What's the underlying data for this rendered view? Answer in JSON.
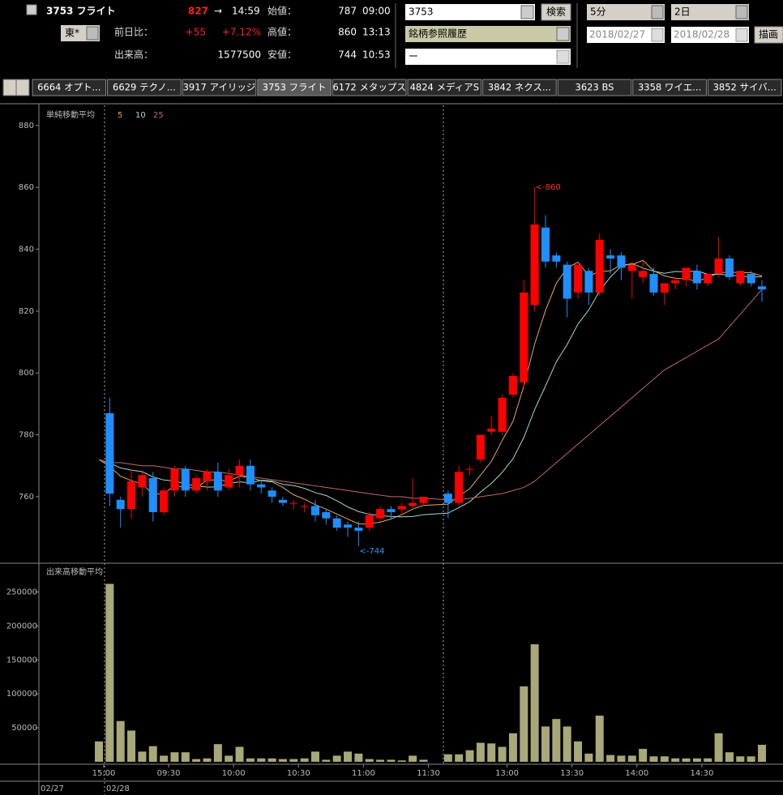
{
  "header": {
    "symbol": "3753 フライト",
    "price": "827",
    "arrow": "→",
    "time": "14:59",
    "exchange": "東*",
    "change_label": "前日比：",
    "change": "+55",
    "change_pct": "+7.12%",
    "volume_label": "出来高：",
    "volume": "1577500",
    "open_label": "始値：",
    "open": "787",
    "open_time": "09:00",
    "high_label": "高値：",
    "high": "860",
    "high_time": "13:13",
    "low_label": "安値：",
    "low": "744",
    "low_time": "10:53"
  },
  "controls": {
    "code": "3753",
    "search": "検索",
    "history": "銘柄参照履歴",
    "third": "ー",
    "interval": "5分",
    "span": "2日",
    "from": "2018/02/27",
    "to": "2018/02/28",
    "draw": "描画"
  },
  "tabs": [
    "6664 オプト...",
    "6629 テクノ...",
    "3917 アイリッジ",
    "3753 フライト",
    "6172 メタップス",
    "4824 メディアS",
    "3842 ネクス...",
    "3623 BS",
    "3358 ワイエ...",
    "3852 サイバ..."
  ],
  "dates": [
    "02/27",
    "02/28"
  ],
  "chart_data": [
    {
      "type": "candlestick",
      "title": "単純移動平均",
      "up_color": "#ff0000",
      "down_color": "#1e8fff",
      "open": [
        null,
        787,
        759,
        756,
        763,
        766,
        755,
        762,
        769,
        762,
        765,
        768,
        763,
        767,
        770,
        764,
        762,
        759,
        758,
        757,
        757,
        755,
        753,
        751,
        750,
        750,
        753,
        756,
        756,
        757,
        758,
        761,
        758,
        769,
        772,
        781,
        781,
        793,
        797,
        822,
        847,
        838,
        835,
        826,
        833,
        826,
        838,
        838,
        833,
        831,
        832,
        826,
        829,
        830,
        833,
        829,
        832,
        837,
        829,
        832,
        828
      ],
      "high": [
        null,
        792,
        760,
        769,
        768,
        768,
        763,
        770,
        770,
        767,
        769,
        771,
        769,
        772,
        772,
        765,
        763,
        760,
        759,
        758,
        759,
        756,
        754,
        752,
        752,
        755,
        757,
        757,
        758,
        766,
        760,
        762,
        770,
        770,
        780,
        786,
        793,
        800,
        830,
        860,
        851,
        839,
        836,
        835,
        834,
        845,
        840,
        839,
        836,
        836,
        834,
        829,
        831,
        834,
        835,
        832,
        844,
        838,
        833,
        833,
        830
      ],
      "low": [
        null,
        757,
        750,
        753,
        760,
        752,
        754,
        760,
        760,
        761,
        762,
        760,
        762,
        763,
        762,
        761,
        758,
        757,
        756,
        755,
        752,
        751,
        749,
        747,
        744,
        749,
        752,
        753,
        754,
        756,
        757,
        753,
        757,
        767,
        771,
        780,
        780,
        792,
        795,
        820,
        834,
        834,
        818,
        824,
        822,
        825,
        832,
        830,
        824,
        829,
        825,
        822,
        827,
        828,
        827,
        828,
        831,
        830,
        828,
        828,
        823
      ],
      "close": [
        null,
        761,
        756,
        765,
        767,
        755,
        762,
        769,
        762,
        766,
        768,
        762,
        767,
        770,
        764,
        763,
        760,
        758,
        758,
        757,
        754,
        753,
        750,
        750,
        749,
        754,
        756,
        755,
        757,
        758,
        760,
        758,
        768,
        769,
        780,
        782,
        792,
        799,
        826,
        848,
        836,
        836,
        824,
        835,
        826,
        843,
        837,
        834,
        835,
        833,
        826,
        829,
        830,
        834,
        829,
        832,
        837,
        831,
        833,
        829,
        827
      ],
      "series": [
        {
          "name": "5",
          "color": "#e0a860",
          "values": [
            772,
            769.8,
            766.6,
            765.2,
            764.2,
            760.8,
            761.0,
            763.6,
            763.0,
            762.8,
            765.4,
            765.4,
            765.0,
            766.6,
            766.2,
            765.2,
            764.8,
            763.0,
            760.6,
            759.2,
            757.4,
            756.0,
            754.4,
            752.8,
            751.2,
            751.2,
            751.8,
            752.8,
            754.2,
            756.0,
            757.2,
            757.6,
            760.2,
            762.6,
            767.0,
            771.4,
            778.2,
            784.4,
            795.8,
            809.4,
            820.2,
            829.0,
            834.0,
            835.8,
            831.4,
            832.8,
            833.0,
            835.0,
            835.0,
            836.4,
            833.0,
            831.4,
            830.6,
            830.4,
            829.6,
            830.8,
            832.4,
            832.6,
            832.4,
            832.4,
            831.4
          ]
        },
        {
          "name": "10",
          "color": "#a0d8d0",
          "values": [
            772,
            770.9,
            769.3,
            768.6,
            768.1,
            766.4,
            765.4,
            765.1,
            764.1,
            763.5,
            763.1,
            763.2,
            764.3,
            764.8,
            764.5,
            765.3,
            765.1,
            764.0,
            763.6,
            762.7,
            761.3,
            760.4,
            758.7,
            756.7,
            755.2,
            754.3,
            753.9,
            753.6,
            753.5,
            753.6,
            754.2,
            754.7,
            756.5,
            758.4,
            761.5,
            764.3,
            767.9,
            772.3,
            779.2,
            788.2,
            795.8,
            803.6,
            809.2,
            815.8,
            820.4,
            826.5,
            831.0,
            834.5,
            835.4,
            833.9,
            832.9,
            832.2,
            832.8,
            832.7,
            833.0,
            831.9,
            831.9,
            831.6,
            831.4,
            831.0,
            831.1
          ]
        },
        {
          "name": "25",
          "color": "#c06868",
          "values": [
            772,
            771,
            771,
            770.5,
            770,
            770,
            769.5,
            769,
            769,
            768.5,
            768,
            768,
            767.5,
            767,
            766.5,
            766,
            765.5,
            765,
            764.5,
            764,
            763.5,
            763,
            762.5,
            762,
            761.5,
            761,
            760.5,
            760,
            760,
            759.5,
            759.5,
            759,
            759,
            759.5,
            760,
            760.5,
            761,
            762,
            763,
            765,
            768,
            771,
            774,
            777,
            780,
            783,
            786,
            789,
            792,
            795,
            798,
            801,
            803,
            805,
            807,
            809,
            811,
            815,
            819,
            823,
            827
          ]
        }
      ],
      "annotations": [
        {
          "label": "<-860",
          "value": 860,
          "color": "#ff3030"
        },
        {
          "label": "<-744",
          "value": 744,
          "color": "#3399ff"
        }
      ],
      "ylim": [
        738.5,
        886.5
      ],
      "yticks": [
        760,
        780,
        800,
        820,
        840,
        860,
        880
      ]
    },
    {
      "type": "bar",
      "title": "出来高移動平均",
      "color": "#a8a878",
      "categories": [
        "15:00",
        null,
        null,
        null,
        null,
        null,
        "09:30",
        null,
        null,
        null,
        null,
        null,
        "10:00",
        null,
        null,
        null,
        null,
        null,
        "10:30",
        null,
        null,
        null,
        null,
        null,
        "11:00",
        null,
        null,
        null,
        null,
        null,
        "11:30",
        null,
        null,
        null,
        null,
        null,
        "13:00",
        null,
        null,
        null,
        null,
        null,
        "13:30",
        null,
        null,
        null,
        null,
        null,
        "14:00",
        null,
        null,
        null,
        null,
        null,
        "14:30",
        null,
        null,
        null,
        null,
        null,
        null
      ],
      "values": [
        30000,
        262000,
        60000,
        46000,
        15000,
        23000,
        9000,
        14000,
        14000,
        4000,
        5000,
        26000,
        9000,
        22000,
        5000,
        5000,
        5000,
        4000,
        4000,
        5000,
        15000,
        3000,
        9000,
        15000,
        12000,
        4000,
        3000,
        3000,
        2000,
        9000,
        3000,
        11000,
        11000,
        17000,
        28000,
        27000,
        22000,
        42000,
        111000,
        173000,
        52000,
        63000,
        52000,
        30000,
        12000,
        68000,
        10000,
        9000,
        9000,
        19000,
        8000,
        8000,
        5000,
        5000,
        5000,
        5000,
        42000,
        14000,
        8000,
        8000,
        25000
      ],
      "ylim": [
        0,
        290000
      ],
      "yticks": [
        50000,
        100000,
        150000,
        200000,
        250000
      ]
    }
  ]
}
